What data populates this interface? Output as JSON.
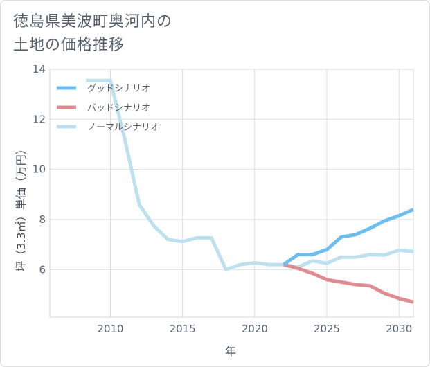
{
  "title": {
    "line1": "徳島県美波町奥河内の",
    "line2": "土地の価格推移"
  },
  "chart_data": {
    "type": "line",
    "xlabel": "年",
    "ylabel": "坪（3.3㎡）単価（万円）",
    "xlim": [
      2005.8,
      2031
    ],
    "ylim": [
      4.1,
      14
    ],
    "xticks": [
      2010,
      2015,
      2020,
      2025,
      2030
    ],
    "yticks": [
      6,
      8,
      10,
      12,
      14
    ],
    "grid": true,
    "legend_position": "top-left",
    "series": [
      {
        "name": "グッドシナリオ",
        "color": "#6ebdf0",
        "x": [
          2022,
          2023,
          2024,
          2025,
          2026,
          2027,
          2028,
          2029,
          2030,
          2031
        ],
        "y": [
          6.2,
          6.6,
          6.6,
          6.8,
          7.3,
          7.4,
          7.65,
          7.95,
          8.15,
          8.4
        ]
      },
      {
        "name": "バッドシナリオ",
        "color": "#e08a92",
        "x": [
          2022,
          2023,
          2024,
          2025,
          2026,
          2027,
          2028,
          2029,
          2030,
          2031
        ],
        "y": [
          6.2,
          6.05,
          5.85,
          5.6,
          5.5,
          5.4,
          5.35,
          5.05,
          4.85,
          4.7
        ]
      },
      {
        "name": "ノーマルシナリオ",
        "color": "#bde0ef",
        "x": [
          2008.3,
          2009,
          2010,
          2011,
          2012,
          2013,
          2014,
          2015,
          2016,
          2017,
          2018,
          2019,
          2020,
          2021,
          2022,
          2023,
          2024,
          2025,
          2026,
          2027,
          2028,
          2029,
          2030,
          2031
        ],
        "y": [
          13.55,
          13.55,
          13.55,
          11.2,
          8.6,
          7.75,
          7.2,
          7.12,
          7.27,
          7.27,
          6.0,
          6.2,
          6.27,
          6.2,
          6.2,
          6.1,
          6.35,
          6.25,
          6.5,
          6.5,
          6.6,
          6.58,
          6.77,
          6.72
        ]
      }
    ]
  }
}
